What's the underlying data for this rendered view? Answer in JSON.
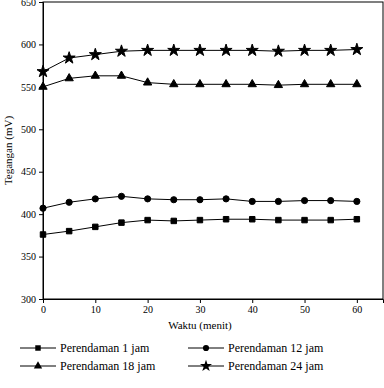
{
  "chart_data": {
    "type": "line",
    "x_label": "Waktu (menit)",
    "y_label": "Tegangan (mV)",
    "x": [
      0,
      5,
      10,
      15,
      20,
      25,
      30,
      35,
      40,
      45,
      50,
      55,
      60
    ],
    "series": [
      {
        "name": "Perendaman 1 jam",
        "color": "#000000",
        "marker": "square",
        "values": [
          376,
          380,
          385,
          390,
          393,
          392,
          393,
          394,
          394,
          393,
          393,
          393,
          394
        ]
      },
      {
        "name": "Perendaman 12 jam",
        "color": "#000000",
        "marker": "circle",
        "values": [
          407,
          414,
          418,
          421,
          418,
          417,
          417,
          418,
          415,
          415,
          416,
          416,
          415
        ]
      },
      {
        "name": "Perendaman 18 jam",
        "color": "#000000",
        "marker": "triangle",
        "values": [
          550,
          560,
          563,
          563,
          555,
          553,
          553,
          553,
          553,
          552,
          553,
          553,
          553
        ]
      },
      {
        "name": "Perendaman 24 jam",
        "color": "#000000",
        "marker": "star",
        "values": [
          568,
          584,
          588,
          592,
          593,
          593,
          593,
          593,
          593,
          592,
          593,
          593,
          594
        ]
      }
    ],
    "xlim": [
      0,
      65
    ],
    "xticks": [
      0,
      10,
      20,
      30,
      40,
      50,
      60
    ],
    "ylim": [
      300,
      650
    ],
    "yticks": [
      300,
      350,
      400,
      450,
      500,
      550,
      600,
      650
    ],
    "legend": "bottom",
    "grid": false
  }
}
